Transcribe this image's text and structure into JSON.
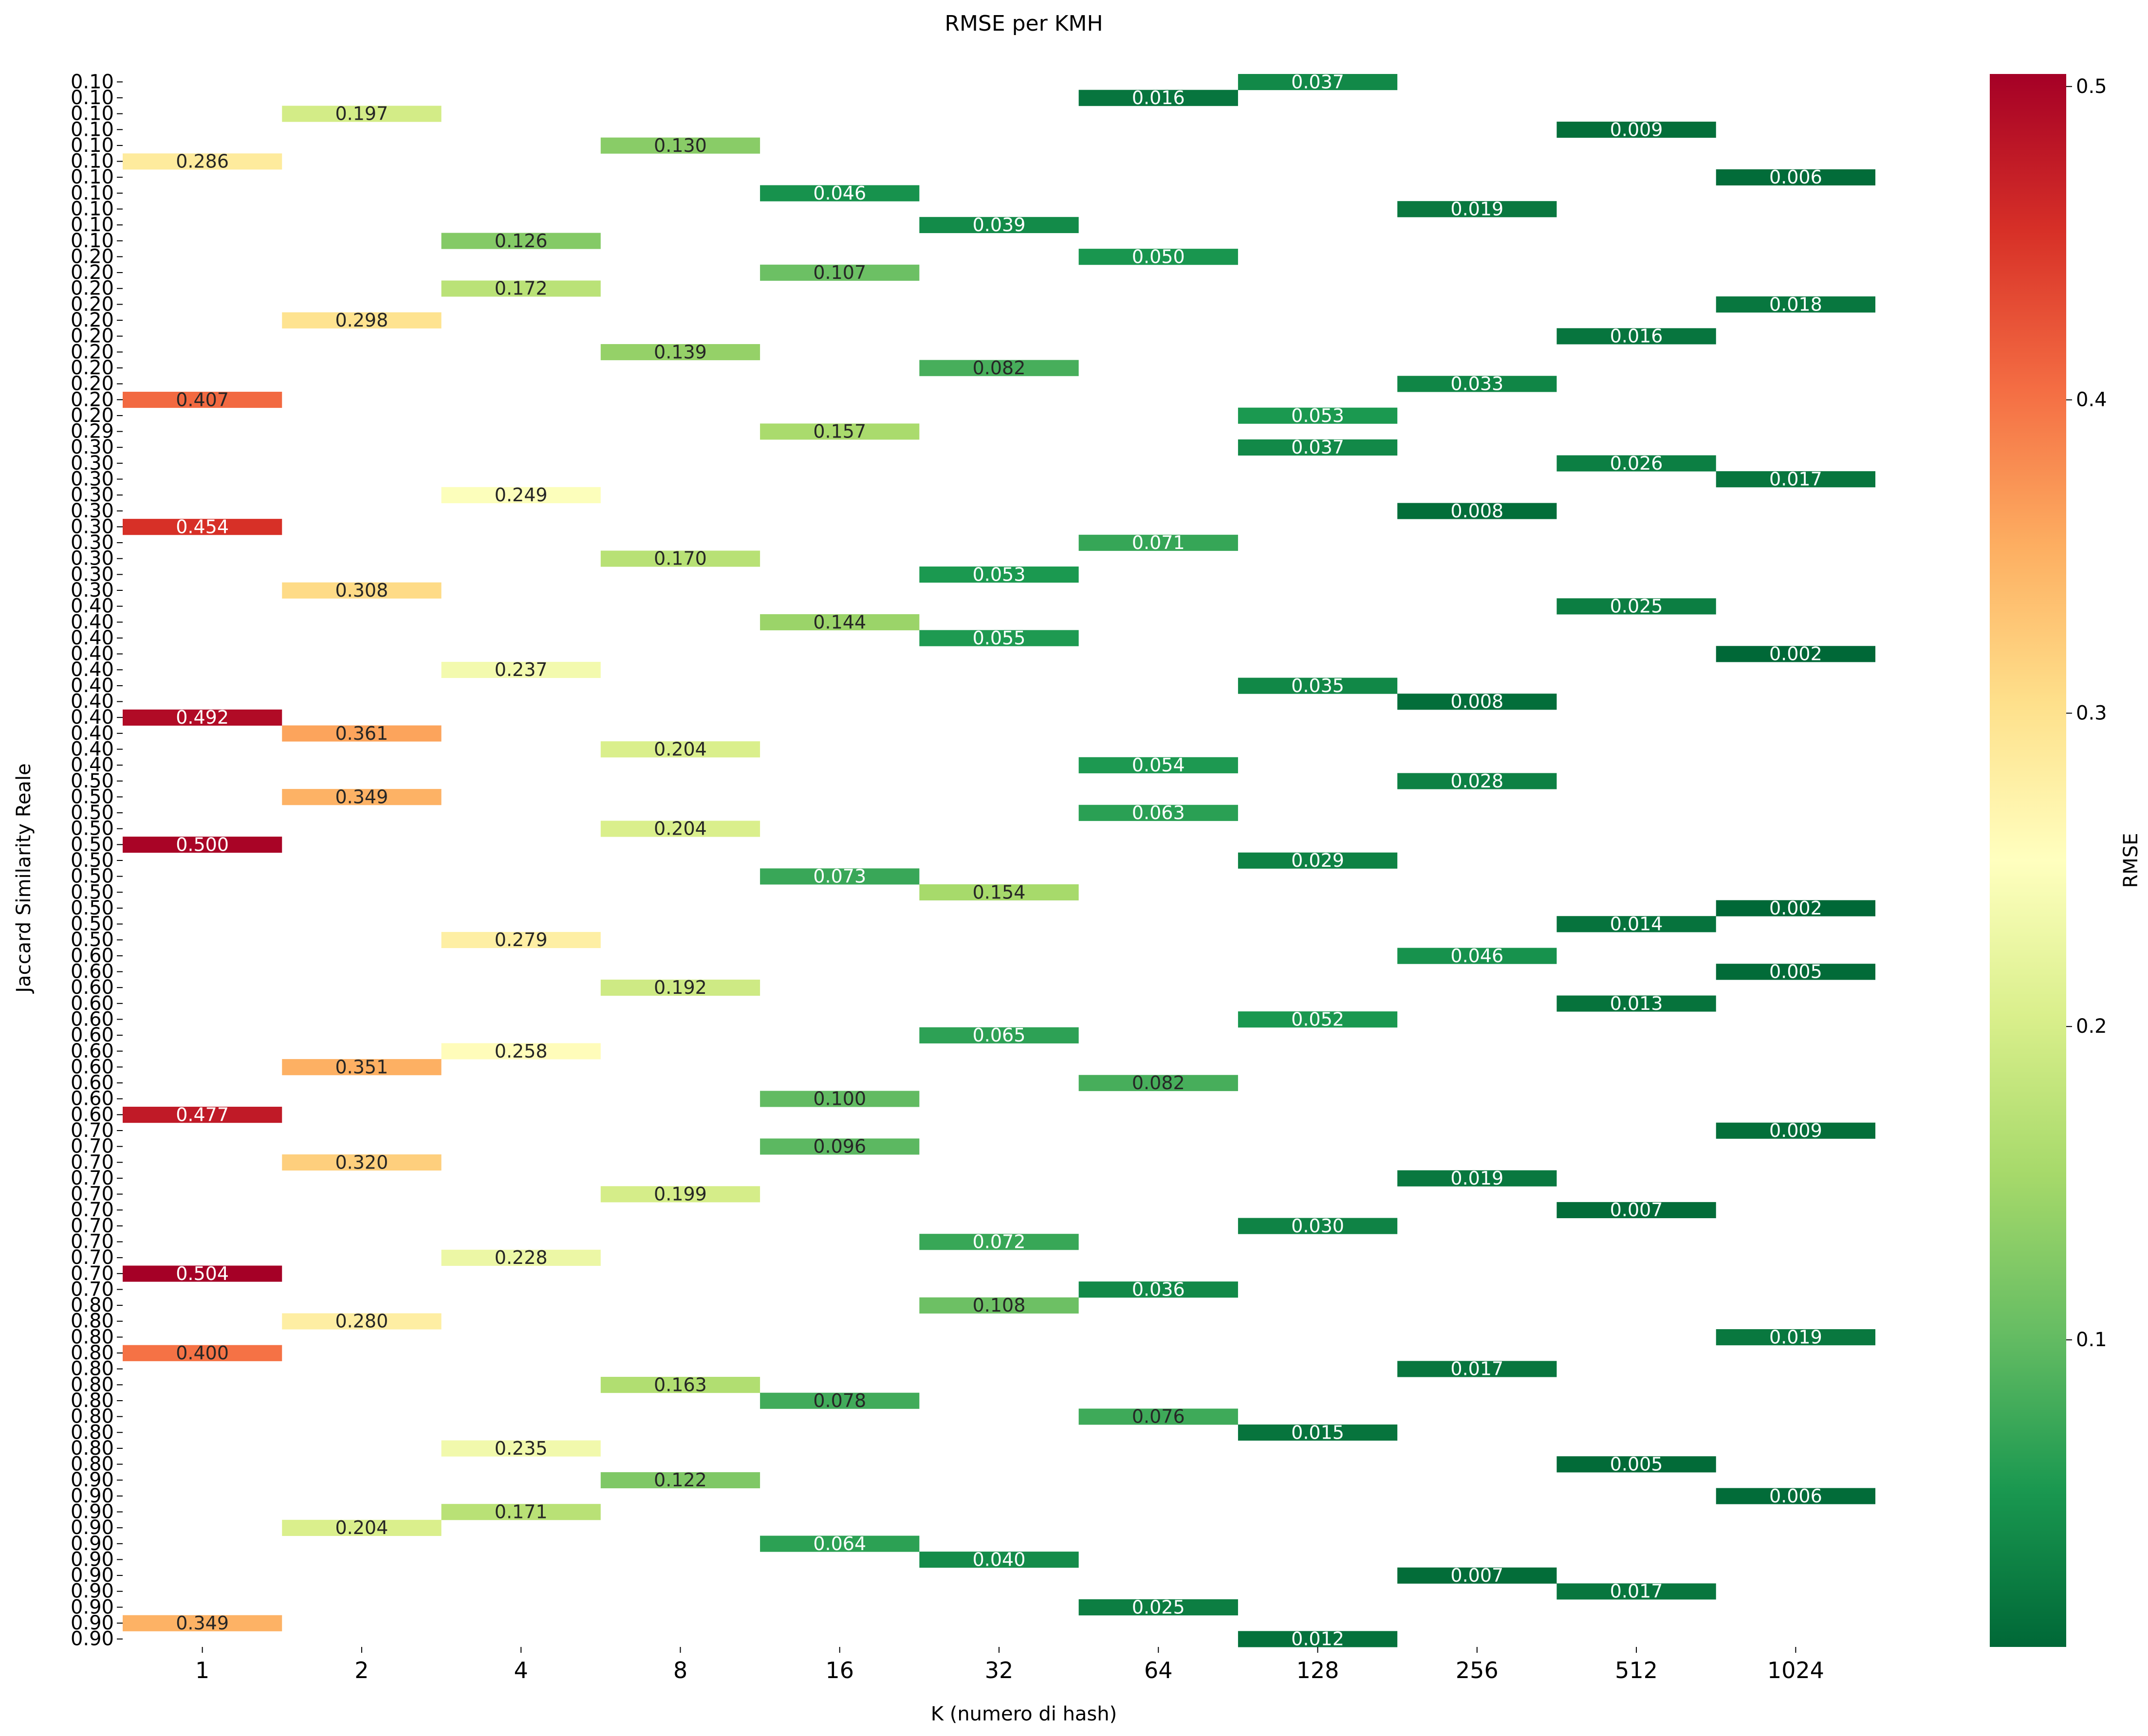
{
  "chart_data": {
    "type": "heatmap",
    "title": "RMSE per KMH",
    "xlabel": "K (numero di hash)",
    "ylabel": "Jaccard Similarity Reale",
    "colorbar_label": "RMSE",
    "colormap": "RdYlGn_r",
    "vmin": 0.002,
    "vmax": 0.504,
    "colorbar_ticks": [
      "0.1",
      "0.2",
      "0.3",
      "0.4",
      "0.5"
    ],
    "x_categories": [
      "1",
      "2",
      "4",
      "8",
      "16",
      "32",
      "64",
      "128",
      "256",
      "512",
      "1024"
    ],
    "y_labels": [
      "0.10",
      "0.10",
      "0.10",
      "0.10",
      "0.10",
      "0.10",
      "0.10",
      "0.10",
      "0.10",
      "0.10",
      "0.10",
      "0.20",
      "0.20",
      "0.20",
      "0.20",
      "0.20",
      "0.20",
      "0.20",
      "0.20",
      "0.20",
      "0.20",
      "0.20",
      "0.29",
      "0.30",
      "0.30",
      "0.30",
      "0.30",
      "0.30",
      "0.30",
      "0.30",
      "0.30",
      "0.30",
      "0.30",
      "0.40",
      "0.40",
      "0.40",
      "0.40",
      "0.40",
      "0.40",
      "0.40",
      "0.40",
      "0.40",
      "0.40",
      "0.40",
      "0.50",
      "0.50",
      "0.50",
      "0.50",
      "0.50",
      "0.50",
      "0.50",
      "0.50",
      "0.50",
      "0.50",
      "0.50",
      "0.60",
      "0.60",
      "0.60",
      "0.60",
      "0.60",
      "0.60",
      "0.60",
      "0.60",
      "0.60",
      "0.60",
      "0.60",
      "0.70",
      "0.70",
      "0.70",
      "0.70",
      "0.70",
      "0.70",
      "0.70",
      "0.70",
      "0.70",
      "0.70",
      "0.70",
      "0.80",
      "0.80",
      "0.80",
      "0.80",
      "0.80",
      "0.80",
      "0.80",
      "0.80",
      "0.80",
      "0.80",
      "0.80",
      "0.90",
      "0.90",
      "0.90",
      "0.90",
      "0.90",
      "0.90",
      "0.90",
      "0.90",
      "0.90",
      "0.90",
      "0.90"
    ],
    "cells": [
      {
        "row": 0,
        "col": 7,
        "value": 0.037
      },
      {
        "row": 1,
        "col": 6,
        "value": 0.016
      },
      {
        "row": 2,
        "col": 1,
        "value": 0.197
      },
      {
        "row": 3,
        "col": 9,
        "value": 0.009
      },
      {
        "row": 4,
        "col": 3,
        "value": 0.13
      },
      {
        "row": 5,
        "col": 0,
        "value": 0.286
      },
      {
        "row": 6,
        "col": 10,
        "value": 0.006
      },
      {
        "row": 7,
        "col": 4,
        "value": 0.046
      },
      {
        "row": 8,
        "col": 8,
        "value": 0.019
      },
      {
        "row": 9,
        "col": 5,
        "value": 0.039
      },
      {
        "row": 10,
        "col": 2,
        "value": 0.126
      },
      {
        "row": 11,
        "col": 6,
        "value": 0.05
      },
      {
        "row": 12,
        "col": 4,
        "value": 0.107
      },
      {
        "row": 13,
        "col": 2,
        "value": 0.172
      },
      {
        "row": 14,
        "col": 10,
        "value": 0.018
      },
      {
        "row": 15,
        "col": 1,
        "value": 0.298
      },
      {
        "row": 16,
        "col": 9,
        "value": 0.016
      },
      {
        "row": 17,
        "col": 3,
        "value": 0.139
      },
      {
        "row": 18,
        "col": 5,
        "value": 0.082
      },
      {
        "row": 19,
        "col": 8,
        "value": 0.033
      },
      {
        "row": 20,
        "col": 0,
        "value": 0.407
      },
      {
        "row": 21,
        "col": 7,
        "value": 0.053
      },
      {
        "row": 22,
        "col": 4,
        "value": 0.157
      },
      {
        "row": 23,
        "col": 7,
        "value": 0.037
      },
      {
        "row": 24,
        "col": 9,
        "value": 0.026
      },
      {
        "row": 25,
        "col": 10,
        "value": 0.017
      },
      {
        "row": 26,
        "col": 2,
        "value": 0.249
      },
      {
        "row": 27,
        "col": 8,
        "value": 0.008
      },
      {
        "row": 28,
        "col": 0,
        "value": 0.454
      },
      {
        "row": 29,
        "col": 6,
        "value": 0.071
      },
      {
        "row": 30,
        "col": 3,
        "value": 0.17
      },
      {
        "row": 31,
        "col": 5,
        "value": 0.053
      },
      {
        "row": 32,
        "col": 1,
        "value": 0.308
      },
      {
        "row": 33,
        "col": 9,
        "value": 0.025
      },
      {
        "row": 34,
        "col": 4,
        "value": 0.144
      },
      {
        "row": 35,
        "col": 5,
        "value": 0.055
      },
      {
        "row": 36,
        "col": 10,
        "value": 0.002
      },
      {
        "row": 37,
        "col": 2,
        "value": 0.237
      },
      {
        "row": 38,
        "col": 7,
        "value": 0.035
      },
      {
        "row": 39,
        "col": 8,
        "value": 0.008
      },
      {
        "row": 40,
        "col": 0,
        "value": 0.492
      },
      {
        "row": 41,
        "col": 1,
        "value": 0.361
      },
      {
        "row": 42,
        "col": 3,
        "value": 0.204
      },
      {
        "row": 43,
        "col": 6,
        "value": 0.054
      },
      {
        "row": 44,
        "col": 8,
        "value": 0.028
      },
      {
        "row": 45,
        "col": 1,
        "value": 0.349
      },
      {
        "row": 46,
        "col": 6,
        "value": 0.063
      },
      {
        "row": 47,
        "col": 3,
        "value": 0.204
      },
      {
        "row": 48,
        "col": 0,
        "value": 0.5
      },
      {
        "row": 49,
        "col": 7,
        "value": 0.029
      },
      {
        "row": 50,
        "col": 4,
        "value": 0.073
      },
      {
        "row": 51,
        "col": 5,
        "value": 0.154
      },
      {
        "row": 52,
        "col": 10,
        "value": 0.002
      },
      {
        "row": 53,
        "col": 9,
        "value": 0.014
      },
      {
        "row": 54,
        "col": 2,
        "value": 0.279
      },
      {
        "row": 55,
        "col": 8,
        "value": 0.046
      },
      {
        "row": 56,
        "col": 10,
        "value": 0.005
      },
      {
        "row": 57,
        "col": 3,
        "value": 0.192
      },
      {
        "row": 58,
        "col": 9,
        "value": 0.013
      },
      {
        "row": 59,
        "col": 7,
        "value": 0.052
      },
      {
        "row": 60,
        "col": 5,
        "value": 0.065
      },
      {
        "row": 61,
        "col": 2,
        "value": 0.258
      },
      {
        "row": 62,
        "col": 1,
        "value": 0.351
      },
      {
        "row": 63,
        "col": 6,
        "value": 0.082
      },
      {
        "row": 64,
        "col": 4,
        "value": 0.1
      },
      {
        "row": 65,
        "col": 0,
        "value": 0.477
      },
      {
        "row": 66,
        "col": 10,
        "value": 0.009
      },
      {
        "row": 67,
        "col": 4,
        "value": 0.096
      },
      {
        "row": 68,
        "col": 1,
        "value": 0.32
      },
      {
        "row": 69,
        "col": 8,
        "value": 0.019
      },
      {
        "row": 70,
        "col": 3,
        "value": 0.199
      },
      {
        "row": 71,
        "col": 9,
        "value": 0.007
      },
      {
        "row": 72,
        "col": 7,
        "value": 0.03
      },
      {
        "row": 73,
        "col": 5,
        "value": 0.072
      },
      {
        "row": 74,
        "col": 2,
        "value": 0.228
      },
      {
        "row": 75,
        "col": 0,
        "value": 0.504
      },
      {
        "row": 76,
        "col": 6,
        "value": 0.036
      },
      {
        "row": 77,
        "col": 5,
        "value": 0.108
      },
      {
        "row": 78,
        "col": 1,
        "value": 0.28
      },
      {
        "row": 79,
        "col": 10,
        "value": 0.019
      },
      {
        "row": 80,
        "col": 0,
        "value": 0.4
      },
      {
        "row": 81,
        "col": 8,
        "value": 0.017
      },
      {
        "row": 82,
        "col": 3,
        "value": 0.163
      },
      {
        "row": 83,
        "col": 4,
        "value": 0.078
      },
      {
        "row": 84,
        "col": 6,
        "value": 0.076
      },
      {
        "row": 85,
        "col": 7,
        "value": 0.015
      },
      {
        "row": 86,
        "col": 2,
        "value": 0.235
      },
      {
        "row": 87,
        "col": 9,
        "value": 0.005
      },
      {
        "row": 88,
        "col": 3,
        "value": 0.122
      },
      {
        "row": 89,
        "col": 10,
        "value": 0.006
      },
      {
        "row": 90,
        "col": 2,
        "value": 0.171
      },
      {
        "row": 91,
        "col": 1,
        "value": 0.204
      },
      {
        "row": 92,
        "col": 4,
        "value": 0.064
      },
      {
        "row": 93,
        "col": 5,
        "value": 0.04
      },
      {
        "row": 94,
        "col": 8,
        "value": 0.007
      },
      {
        "row": 95,
        "col": 9,
        "value": 0.017
      },
      {
        "row": 96,
        "col": 6,
        "value": 0.025
      },
      {
        "row": 97,
        "col": 0,
        "value": 0.349
      },
      {
        "row": 98,
        "col": 7,
        "value": 0.012
      }
    ]
  }
}
